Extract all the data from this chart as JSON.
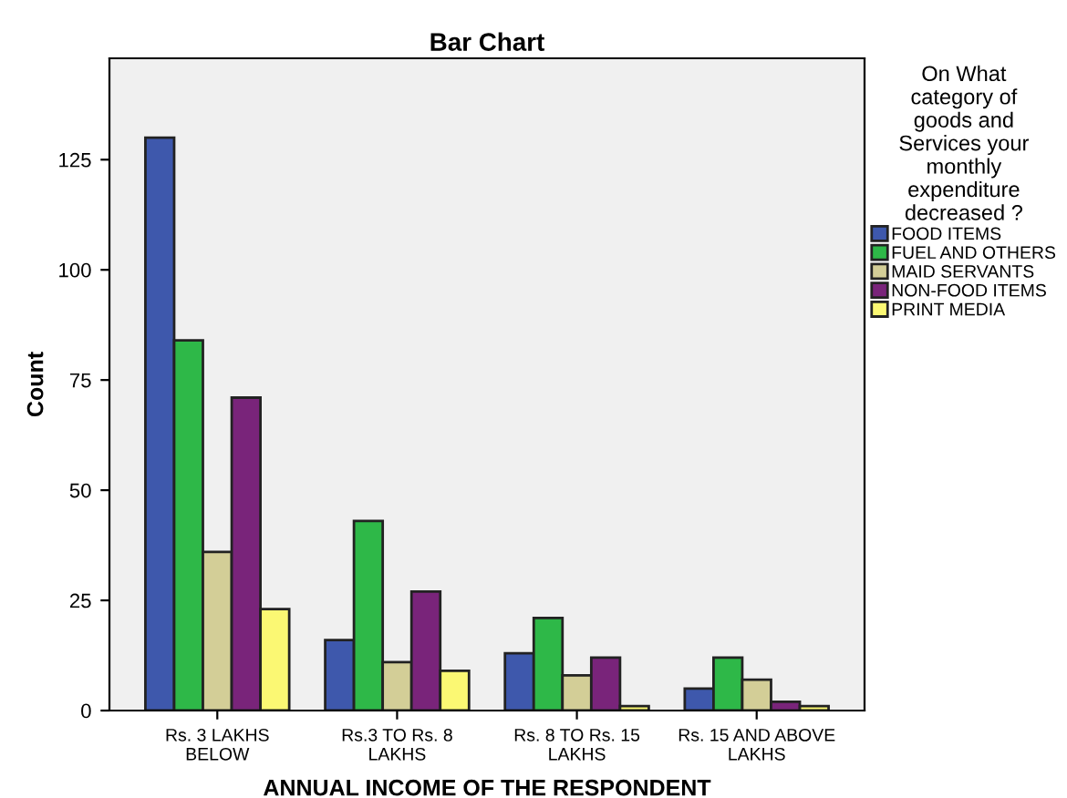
{
  "chart_data": {
    "type": "bar",
    "title": "Bar Chart",
    "xlabel": "ANNUAL INCOME OF THE RESPONDENT",
    "ylabel": "Count",
    "legend_title": "On What\ncategory of\ngoods and\nServices your\nmonthly\nexpenditure\ndecreased ?",
    "categories": [
      "Rs. 3 LAKHS\nBELOW",
      "Rs.3 TO Rs. 8\nLAKHS",
      "Rs. 8 TO Rs. 15\nLAKHS",
      "Rs. 15 AND ABOVE\nLAKHS"
    ],
    "series": [
      {
        "name": "FOOD ITEMS",
        "color": "#3e58ac",
        "values": [
          130,
          16,
          13,
          5
        ]
      },
      {
        "name": "FUEL AND OTHERS",
        "color": "#2eb848",
        "values": [
          84,
          43,
          21,
          12
        ]
      },
      {
        "name": "MAID SERVANTS",
        "color": "#d3ce97",
        "values": [
          36,
          11,
          8,
          7
        ]
      },
      {
        "name": "NON-FOOD ITEMS",
        "color": "#79247a",
        "values": [
          71,
          27,
          12,
          2
        ]
      },
      {
        "name": "PRINT MEDIA",
        "color": "#fbf873",
        "values": [
          23,
          9,
          1,
          1
        ]
      }
    ],
    "ylim": [
      0,
      148
    ],
    "yticks": [
      0,
      25,
      50,
      75,
      100,
      125
    ],
    "grid": false,
    "legend": "right"
  }
}
